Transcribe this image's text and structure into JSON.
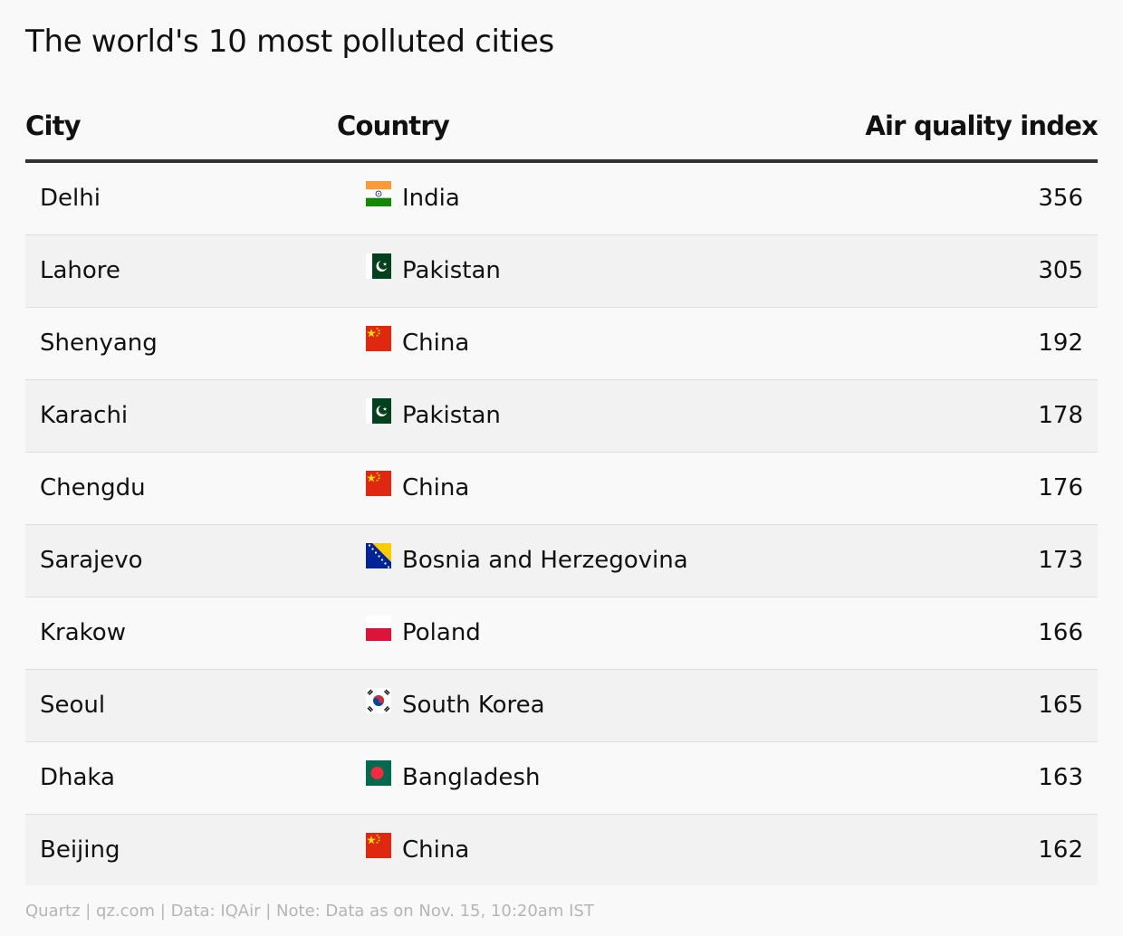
{
  "chart_data": {
    "type": "table",
    "title": "The world's 10 most polluted cities",
    "columns": [
      "City",
      "Country",
      "Air quality index"
    ],
    "rows": [
      {
        "city": "Delhi",
        "country": "India",
        "flag": "india-flag",
        "aqi": 356
      },
      {
        "city": "Lahore",
        "country": "Pakistan",
        "flag": "pakistan-flag",
        "aqi": 305
      },
      {
        "city": "Shenyang",
        "country": "China",
        "flag": "china-flag",
        "aqi": 192
      },
      {
        "city": "Karachi",
        "country": "Pakistan",
        "flag": "pakistan-flag",
        "aqi": 178
      },
      {
        "city": "Chengdu",
        "country": "China",
        "flag": "china-flag",
        "aqi": 176
      },
      {
        "city": "Sarajevo",
        "country": "Bosnia and Herzegovina",
        "flag": "bosnia-flag",
        "aqi": 173
      },
      {
        "city": "Krakow",
        "country": "Poland",
        "flag": "poland-flag",
        "aqi": 166
      },
      {
        "city": "Seoul",
        "country": "South Korea",
        "flag": "south-korea-flag",
        "aqi": 165
      },
      {
        "city": "Dhaka",
        "country": "Bangladesh",
        "flag": "bangladesh-flag",
        "aqi": 163
      },
      {
        "city": "Beijing",
        "country": "China",
        "flag": "china-flag",
        "aqi": 162
      }
    ]
  },
  "footer": "Quartz | qz.com | Data: IQAir | Note: Data as on Nov. 15, 10:20am IST"
}
